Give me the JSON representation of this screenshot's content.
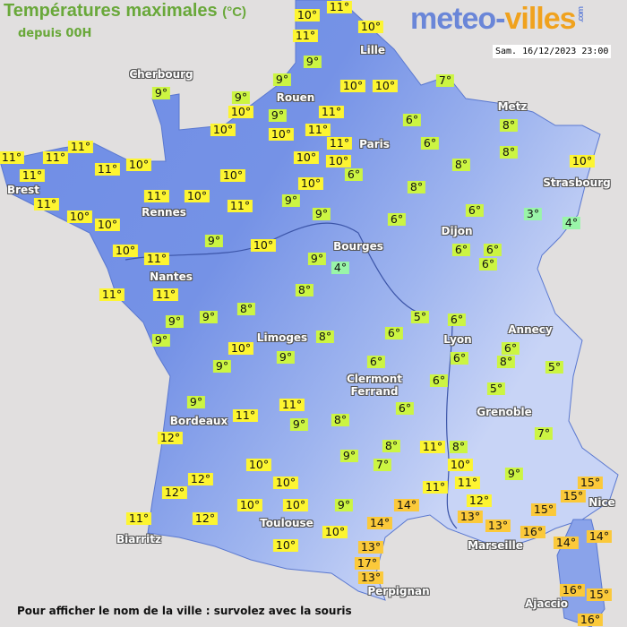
{
  "header": {
    "title": "Températures maximales",
    "unit": "(°C)",
    "subtitle": "depuis 00H",
    "logo_part1": "meteo-",
    "logo_part2": "villes",
    "logo_part3": ".com",
    "datetime": "Sam. 16/12/2023 23:00"
  },
  "footer": {
    "hint": "Pour afficher le nom de la ville : survolez avec la souris"
  },
  "colors": {
    "sea": "#e1dfdf",
    "land": "#6f8de6",
    "cold_0_4": "#99f5a8",
    "cool_5_9": "#ccf542",
    "mild_10_12": "#fdf531",
    "warm_13_plus": "#fbc93a",
    "title": "#69a83a"
  },
  "cities": [
    "Lille",
    "Cherbourg",
    "Rouen",
    "Paris",
    "Metz",
    "Strasbourg",
    "Brest",
    "Rennes",
    "Nantes",
    "Bourges",
    "Dijon",
    "Limoges",
    "Lyon",
    "Annecy",
    "Clermont Ferrand",
    "Grenoble",
    "Bordeaux",
    "Toulouse",
    "Biarritz",
    "Marseille",
    "Nice",
    "Perpignan",
    "Ajaccio"
  ],
  "temperatures": [
    10,
    11,
    11,
    10,
    9,
    9,
    10,
    10,
    7,
    9,
    9,
    10,
    10,
    9,
    10,
    11,
    11,
    11,
    10,
    10,
    10,
    6,
    6,
    8,
    8,
    8,
    10,
    6,
    8,
    6,
    3,
    4,
    6,
    9,
    9,
    11,
    10,
    10,
    11,
    10,
    11,
    11,
    11,
    11,
    11,
    11,
    10,
    10,
    10,
    11,
    9,
    10,
    9,
    4,
    8,
    6,
    6,
    6,
    11,
    11,
    9,
    9,
    9,
    8,
    10,
    9,
    9,
    8,
    6,
    5,
    6,
    6,
    6,
    6,
    5,
    6,
    8,
    5,
    6,
    9,
    11,
    11,
    9,
    8,
    12,
    9,
    8,
    7,
    11,
    8,
    10,
    11,
    11,
    12,
    13,
    13,
    9,
    7,
    10,
    10,
    10,
    10,
    9,
    12,
    12,
    11,
    12,
    14,
    14,
    10,
    10,
    13,
    17,
    13,
    15,
    15,
    15,
    16,
    14,
    14,
    16,
    15,
    16
  ]
}
